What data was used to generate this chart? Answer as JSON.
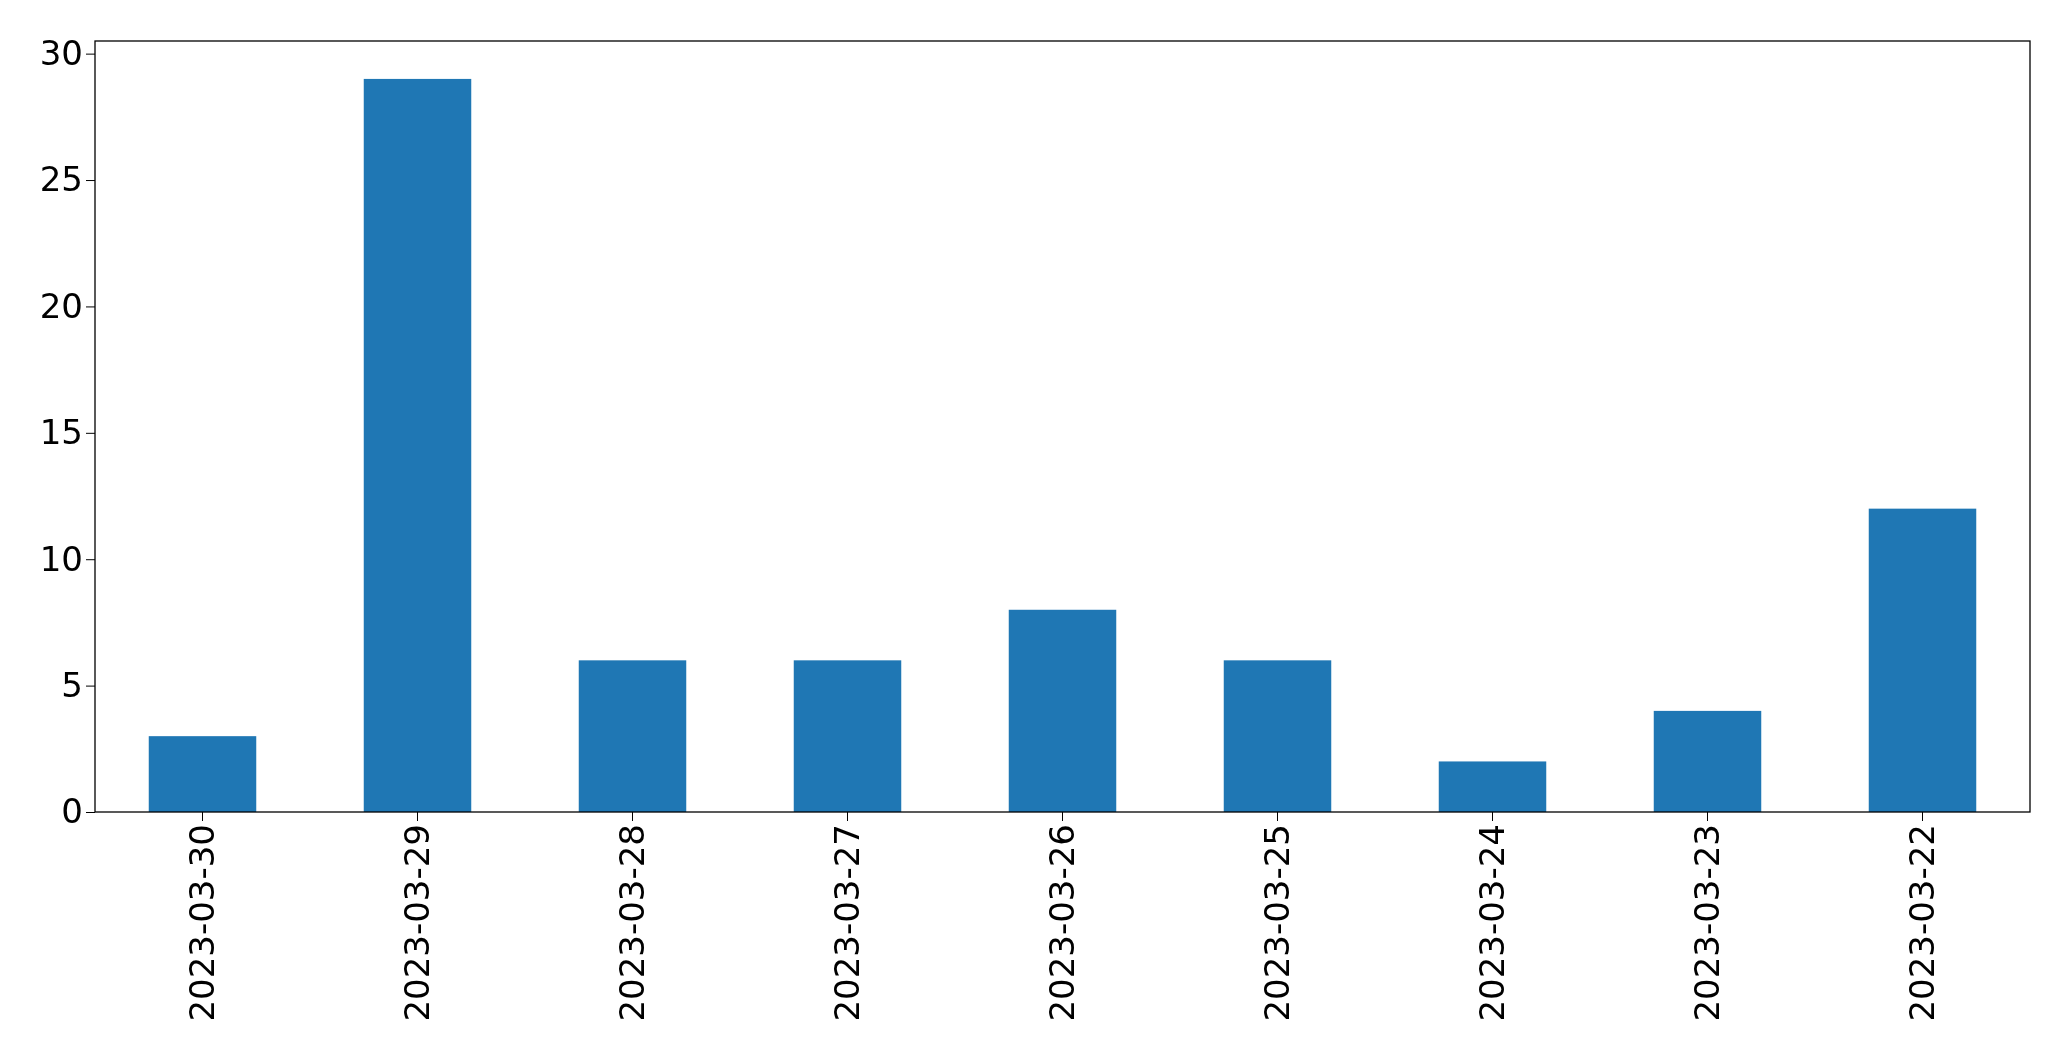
{
  "chart_data": {
    "type": "bar",
    "categories": [
      "2023-03-30",
      "2023-03-29",
      "2023-03-28",
      "2023-03-27",
      "2023-03-26",
      "2023-03-25",
      "2023-03-24",
      "2023-03-23",
      "2023-03-22"
    ],
    "values": [
      3,
      29,
      6,
      6,
      8,
      6,
      2,
      4,
      12
    ],
    "color": "#1f77b4",
    "ylim": [
      0,
      30.5
    ],
    "yticks": [
      0,
      5,
      10,
      15,
      20,
      25,
      30
    ]
  }
}
